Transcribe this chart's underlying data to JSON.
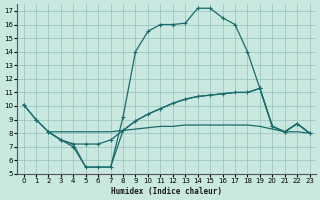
{
  "xlabel": "Humidex (Indice chaleur)",
  "background_color": "#c8e8e0",
  "grid_color": "#a0c8c0",
  "line_color": "#1a6b6b",
  "xlim": [
    -0.5,
    23.5
  ],
  "ylim": [
    5,
    17.5
  ],
  "xticks": [
    0,
    1,
    2,
    3,
    4,
    5,
    6,
    7,
    8,
    9,
    10,
    11,
    12,
    13,
    14,
    15,
    16,
    17,
    18,
    19,
    20,
    21,
    22,
    23
  ],
  "yticks": [
    5,
    6,
    7,
    8,
    9,
    10,
    11,
    12,
    13,
    14,
    15,
    16,
    17
  ],
  "line_peak_x": [
    0,
    1,
    2,
    3,
    4,
    5,
    6,
    7,
    8,
    9,
    10,
    11,
    12,
    13,
    14,
    15,
    16,
    17,
    18,
    19,
    20,
    21,
    22,
    23
  ],
  "line_peak_y": [
    10.1,
    9.0,
    8.1,
    7.5,
    7.0,
    5.5,
    5.5,
    5.5,
    9.2,
    14.0,
    15.5,
    16.0,
    16.0,
    16.1,
    17.2,
    17.2,
    16.5,
    16.0,
    14.0,
    11.3,
    8.5,
    8.1,
    8.7,
    8.0
  ],
  "line_mid_x": [
    0,
    1,
    2,
    3,
    4,
    5,
    6,
    7,
    8,
    9,
    10,
    11,
    12,
    13,
    14,
    15,
    16,
    17,
    18,
    19,
    20,
    21,
    22,
    23
  ],
  "line_mid_y": [
    10.1,
    9.0,
    8.1,
    7.5,
    7.2,
    7.2,
    7.2,
    7.5,
    8.2,
    8.9,
    9.4,
    9.8,
    10.2,
    10.5,
    10.7,
    10.8,
    10.9,
    11.0,
    11.0,
    11.3,
    8.5,
    8.1,
    8.7,
    8.0
  ],
  "line_flat_x": [
    2,
    3,
    4,
    5,
    6,
    7,
    8,
    9,
    10,
    11,
    12,
    13,
    14,
    15,
    16,
    17,
    18,
    19,
    20,
    21,
    22,
    23
  ],
  "line_flat_y": [
    8.1,
    8.1,
    8.1,
    8.1,
    8.1,
    8.1,
    8.2,
    8.3,
    8.4,
    8.5,
    8.5,
    8.6,
    8.6,
    8.6,
    8.6,
    8.6,
    8.6,
    8.5,
    8.3,
    8.1,
    8.1,
    8.0
  ],
  "line_low_x": [
    2,
    3,
    4,
    5,
    6,
    7,
    8,
    9,
    10,
    11,
    12,
    13,
    14,
    15,
    16,
    17,
    18,
    19,
    20,
    21,
    22,
    23
  ],
  "line_low_y": [
    8.1,
    7.5,
    7.2,
    5.5,
    5.5,
    5.5,
    8.2,
    8.9,
    9.4,
    9.8,
    10.2,
    10.5,
    10.7,
    10.8,
    10.9,
    11.0,
    11.0,
    11.3,
    8.5,
    8.1,
    8.7,
    8.0
  ]
}
